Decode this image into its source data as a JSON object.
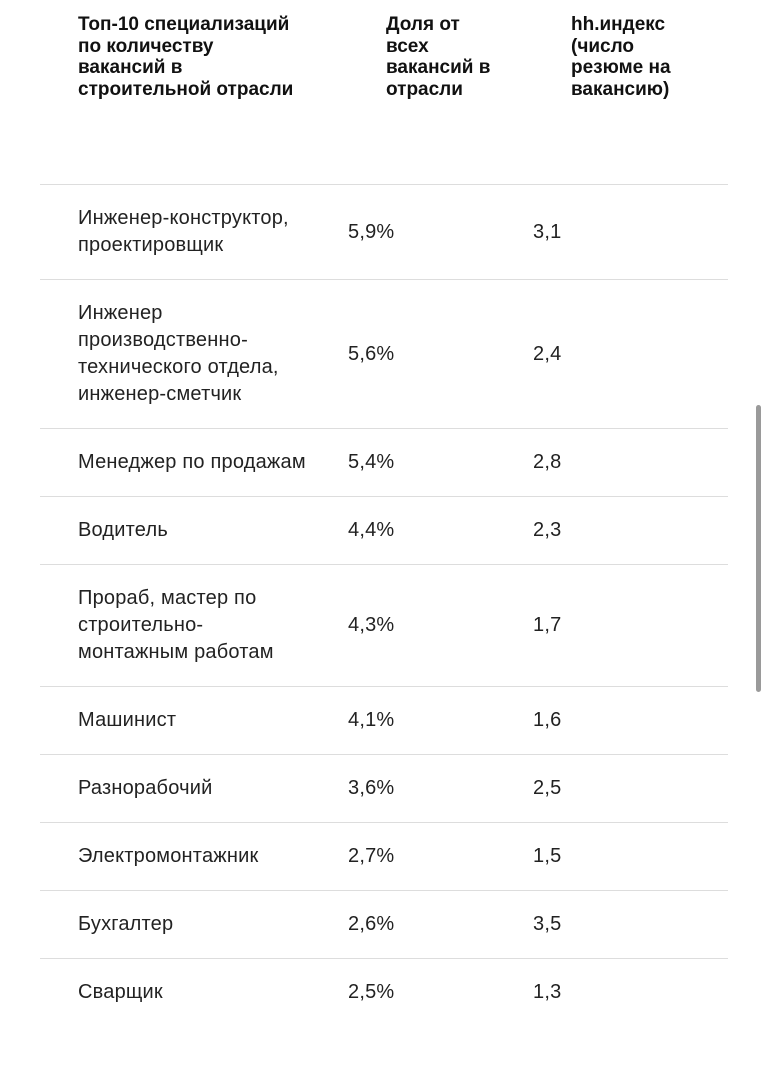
{
  "table": {
    "header": [
      "Топ-10 специализаций по количеству вакансий в строительной отрасли",
      "Доля от всех вакансий в отрасли",
      "hh.индекс (число резюме на вакансию)"
    ],
    "rows": [
      [
        "Инженер-конструктор, проектировщик",
        "5,9%",
        "3,1"
      ],
      [
        "Инженер производственно-технического отдела, инженер-сметчик",
        "5,6%",
        "2,4"
      ],
      [
        "Менеджер по продажам",
        "5,4%",
        "2,8"
      ],
      [
        "Водитель",
        "4,4%",
        "2,3"
      ],
      [
        "Прораб, мастер по строительно-монтажным работам",
        "4,3%",
        "1,7"
      ],
      [
        "Машинист",
        "4,1%",
        "1,6"
      ],
      [
        "Разнорабочий",
        "3,6%",
        "2,5"
      ],
      [
        "Электромонтажник",
        "2,7%",
        "1,5"
      ],
      [
        "Бухгалтер",
        "2,6%",
        "3,5"
      ],
      [
        "Сварщик",
        "2,5%",
        "1,3"
      ]
    ]
  }
}
